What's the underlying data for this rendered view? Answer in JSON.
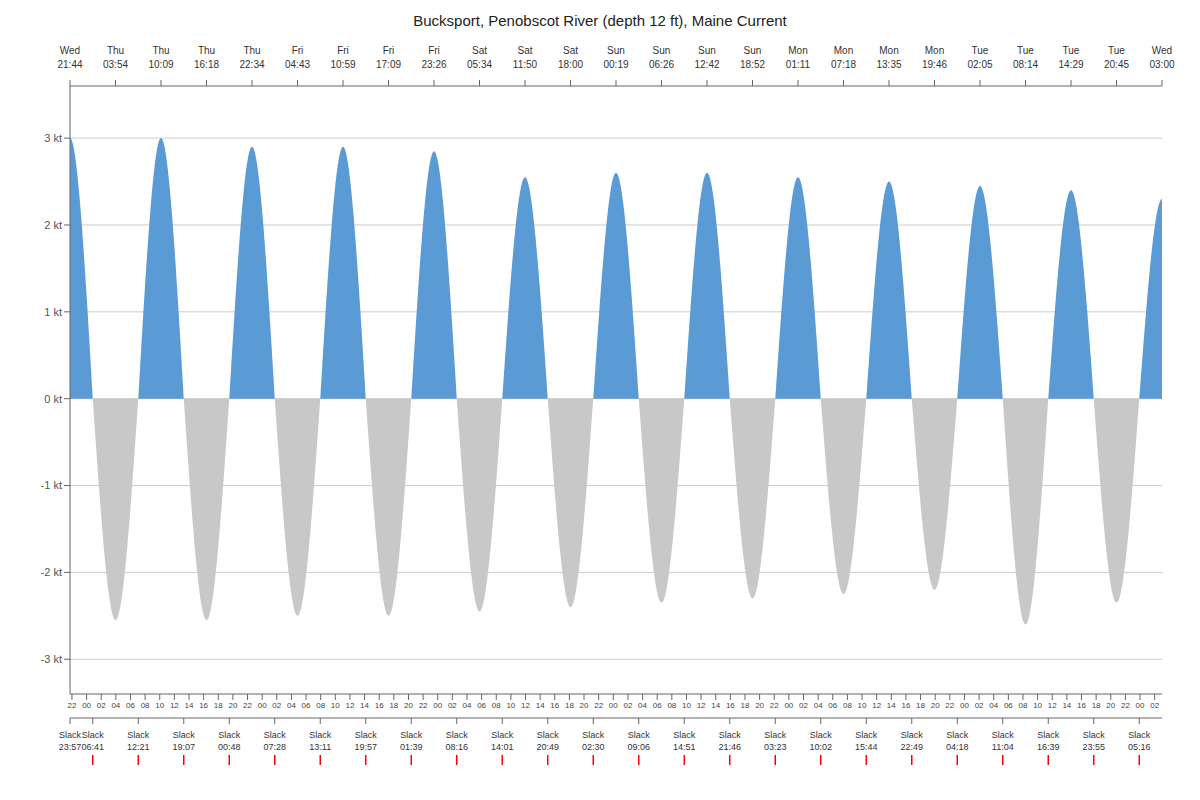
{
  "chart_data": {
    "type": "area",
    "title": "Bucksport, Penobscot River (depth 12 ft), Maine Current",
    "categories": [
      "Wed\n21:44",
      "Thu\n03:54",
      "Thu\n10:09",
      "Thu\n16:18",
      "Thu\n22:34",
      "Fri\n04:43",
      "Fri\n10:59",
      "Fri\n17:09",
      "Fri\n23:26",
      "Sat\n05:34",
      "Sat\n11:50",
      "Sat\n18:00",
      "Sun\n00:19",
      "Sun\n06:26",
      "Sun\n12:42",
      "Sun\n18:52",
      "Mon\n01:11",
      "Mon\n07:18",
      "Mon\n13:35",
      "Mon\n19:46",
      "Tue\n02:05",
      "Tue\n08:14",
      "Tue\n14:29",
      "Tue\n20:45",
      "Wed\n03:00"
    ],
    "values": [
      3.0,
      -2.55,
      3.0,
      -2.55,
      2.9,
      -2.5,
      2.9,
      -2.5,
      2.85,
      -2.45,
      2.55,
      -2.4,
      2.6,
      -2.35,
      2.6,
      -2.3,
      2.55,
      -2.25,
      2.5,
      -2.2,
      2.45,
      -2.6,
      2.4,
      -2.35,
      2.3
    ],
    "colors": [
      "#5b9bd5",
      "#c8c8c8",
      "#5b9bd5",
      "#c8c8c8",
      "#5b9bd5",
      "#c8c8c8",
      "#5b9bd5",
      "#c8c8c8",
      "#5b9bd5",
      "#c8c8c8",
      "#5b9bd5",
      "#c8c8c8",
      "#5b9bd5",
      "#c8c8c8",
      "#5b9bd5",
      "#c8c8c8",
      "#5b9bd5",
      "#c8c8c8",
      "#5b9bd5",
      "#c8c8c8",
      "#5b9bd5",
      "#c8c8c8",
      "#5b9bd5",
      "#c8c8c8",
      "#5b9bd5"
    ],
    "ylim": [
      -3.4,
      3.6
    ],
    "yticks": [
      {
        "value": -3,
        "label": "-3 kt"
      },
      {
        "value": -2,
        "label": "-2 kt"
      },
      {
        "value": -1,
        "label": "-1 kt"
      },
      {
        "value": 0,
        "label": "0 kt"
      },
      {
        "value": 1,
        "label": "1 kt"
      },
      {
        "value": 2,
        "label": "2 kt"
      },
      {
        "value": 3,
        "label": "3 kt"
      }
    ],
    "grid": true,
    "annotations": [
      "Slack\n23:57",
      "Slack\n06:41",
      "Slack\n12:21",
      "Slack\n19:07",
      "Slack\n00:48",
      "Slack\n07:28",
      "Slack\n13:11",
      "Slack\n19:57",
      "Slack\n01:39",
      "Slack\n08:16",
      "Slack\n14:01",
      "Slack\n20:49",
      "Slack\n02:30",
      "Slack\n09:06",
      "Slack\n14:51",
      "Slack\n21:46",
      "Slack\n03:23",
      "Slack\n10:02",
      "Slack\n15:44",
      "Slack\n22:49",
      "Slack\n04:18",
      "Slack\n11:04",
      "Slack\n16:39",
      "Slack\n23:55",
      "Slack\n05:16"
    ],
    "x2lim": [
      0,
      149.27
    ],
    "x2ticks": [
      {
        "value": 0.2667,
        "label": "22"
      },
      {
        "value": 2.2667,
        "label": "00"
      },
      {
        "value": 4.2667,
        "label": "02"
      },
      {
        "value": 6.2667,
        "label": "04"
      },
      {
        "value": 8.2667,
        "label": "06"
      },
      {
        "value": 10.2667,
        "label": "08"
      },
      {
        "value": 12.2667,
        "label": "10"
      },
      {
        "value": 14.2667,
        "label": "12"
      },
      {
        "value": 16.2667,
        "label": "14"
      },
      {
        "value": 18.2667,
        "label": "16"
      },
      {
        "value": 20.2667,
        "label": "18"
      },
      {
        "value": 22.2667,
        "label": "20"
      },
      {
        "value": 24.2667,
        "label": "22"
      },
      {
        "value": 26.2667,
        "label": "00"
      },
      {
        "value": 28.2667,
        "label": "02"
      },
      {
        "value": 30.2667,
        "label": "04"
      },
      {
        "value": 32.2667,
        "label": "06"
      },
      {
        "value": 34.2667,
        "label": "08"
      },
      {
        "value": 36.2667,
        "label": "10"
      },
      {
        "value": 38.2667,
        "label": "12"
      },
      {
        "value": 40.2667,
        "label": "14"
      },
      {
        "value": 42.2667,
        "label": "16"
      },
      {
        "value": 44.2667,
        "label": "18"
      },
      {
        "value": 46.2667,
        "label": "20"
      },
      {
        "value": 48.2667,
        "label": "22"
      },
      {
        "value": 50.2667,
        "label": "00"
      },
      {
        "value": 52.2667,
        "label": "02"
      },
      {
        "value": 54.2667,
        "label": "04"
      },
      {
        "value": 56.2667,
        "label": "06"
      },
      {
        "value": 58.2667,
        "label": "08"
      },
      {
        "value": 60.2667,
        "label": "10"
      },
      {
        "value": 62.2667,
        "label": "12"
      },
      {
        "value": 64.2667,
        "label": "14"
      },
      {
        "value": 66.2667,
        "label": "16"
      },
      {
        "value": 68.2667,
        "label": "18"
      },
      {
        "value": 70.2667,
        "label": "20"
      },
      {
        "value": 72.2667,
        "label": "22"
      },
      {
        "value": 74.2667,
        "label": "00"
      },
      {
        "value": 76.2667,
        "label": "02"
      },
      {
        "value": 78.2667,
        "label": "04"
      },
      {
        "value": 80.2667,
        "label": "06"
      },
      {
        "value": 82.2667,
        "label": "08"
      },
      {
        "value": 84.2667,
        "label": "10"
      },
      {
        "value": 86.2667,
        "label": "12"
      },
      {
        "value": 88.2667,
        "label": "14"
      },
      {
        "value": 90.2667,
        "label": "16"
      },
      {
        "value": 92.2667,
        "label": "18"
      },
      {
        "value": 94.2667,
        "label": "20"
      },
      {
        "value": 96.2667,
        "label": "22"
      },
      {
        "value": 98.2667,
        "label": "00"
      },
      {
        "value": 100.2667,
        "label": "02"
      },
      {
        "value": 102.2667,
        "label": "04"
      },
      {
        "value": 104.2667,
        "label": "06"
      },
      {
        "value": 106.2667,
        "label": "08"
      },
      {
        "value": 108.2667,
        "label": "10"
      },
      {
        "value": 110.2667,
        "label": "12"
      },
      {
        "value": 112.2667,
        "label": "14"
      },
      {
        "value": 114.2667,
        "label": "16"
      },
      {
        "value": 116.2667,
        "label": "18"
      },
      {
        "value": 118.2667,
        "label": "20"
      },
      {
        "value": 120.2667,
        "label": "22"
      },
      {
        "value": 122.2667,
        "label": "00"
      },
      {
        "value": 124.2667,
        "label": "02"
      },
      {
        "value": 126.2667,
        "label": "04"
      },
      {
        "value": 128.2667,
        "label": "06"
      },
      {
        "value": 130.2667,
        "label": "08"
      },
      {
        "value": 132.2667,
        "label": "10"
      },
      {
        "value": 134.2667,
        "label": "12"
      },
      {
        "value": 136.2667,
        "label": "14"
      },
      {
        "value": 138.2667,
        "label": "16"
      },
      {
        "value": 140.2667,
        "label": "18"
      },
      {
        "value": 142.2667,
        "label": "20"
      },
      {
        "value": 144.2667,
        "label": "22"
      },
      {
        "value": 146.2667,
        "label": "00"
      },
      {
        "value": 148.2667,
        "label": "02"
      }
    ]
  }
}
